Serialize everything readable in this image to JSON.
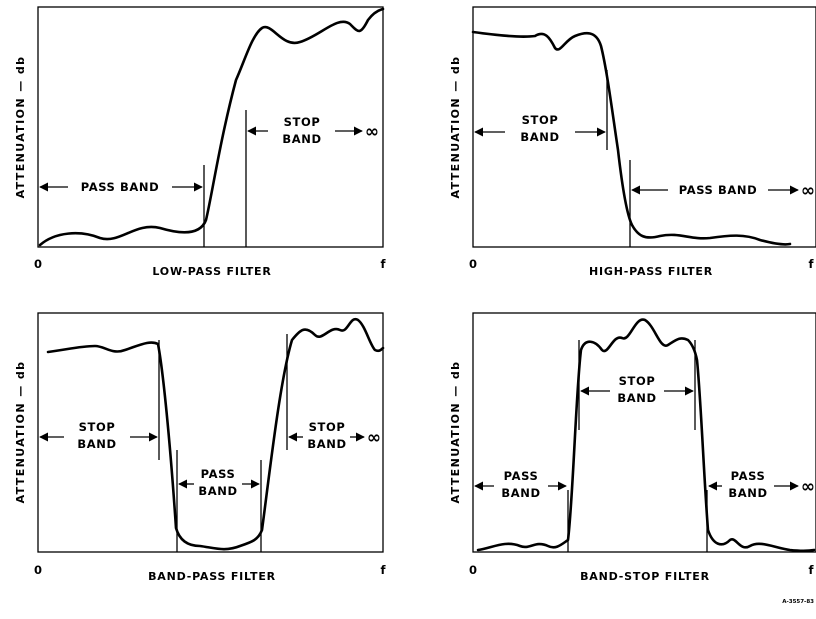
{
  "panels": [
    {
      "caption": "LOW-PASS FILTER",
      "y_axis": "ATTENUATION — db",
      "x_origin": "0",
      "x_end": "f",
      "region_a": {
        "line1": "PASS BAND",
        "line2": ""
      },
      "region_b": {
        "line1": "STOP",
        "line2": "BAND"
      },
      "infinity": "∞"
    },
    {
      "caption": "HIGH-PASS FILTER",
      "y_axis": "ATTENUATION — db",
      "x_origin": "0",
      "x_end": "f",
      "region_a": {
        "line1": "STOP",
        "line2": "BAND"
      },
      "region_b": {
        "line1": "PASS BAND",
        "line2": ""
      },
      "infinity": "∞"
    },
    {
      "caption": "BAND-PASS FILTER",
      "y_axis": "ATTENUATION — db",
      "x_origin": "0",
      "x_end": "f",
      "region_a": {
        "line1": "STOP",
        "line2": "BAND"
      },
      "region_b": {
        "line1": "PASS",
        "line2": "BAND"
      },
      "region_c": {
        "line1": "STOP",
        "line2": "BAND"
      },
      "infinity": "∞"
    },
    {
      "caption": "BAND-STOP FILTER",
      "y_axis": "ATTENUATION — db",
      "x_origin": "0",
      "x_end": "f",
      "region_a": {
        "line1": "PASS",
        "line2": "BAND"
      },
      "region_b": {
        "line1": "STOP",
        "line2": "BAND"
      },
      "region_c": {
        "line1": "PASS",
        "line2": "BAND"
      },
      "infinity": "∞"
    }
  ],
  "figure_number": "A-3557-83"
}
